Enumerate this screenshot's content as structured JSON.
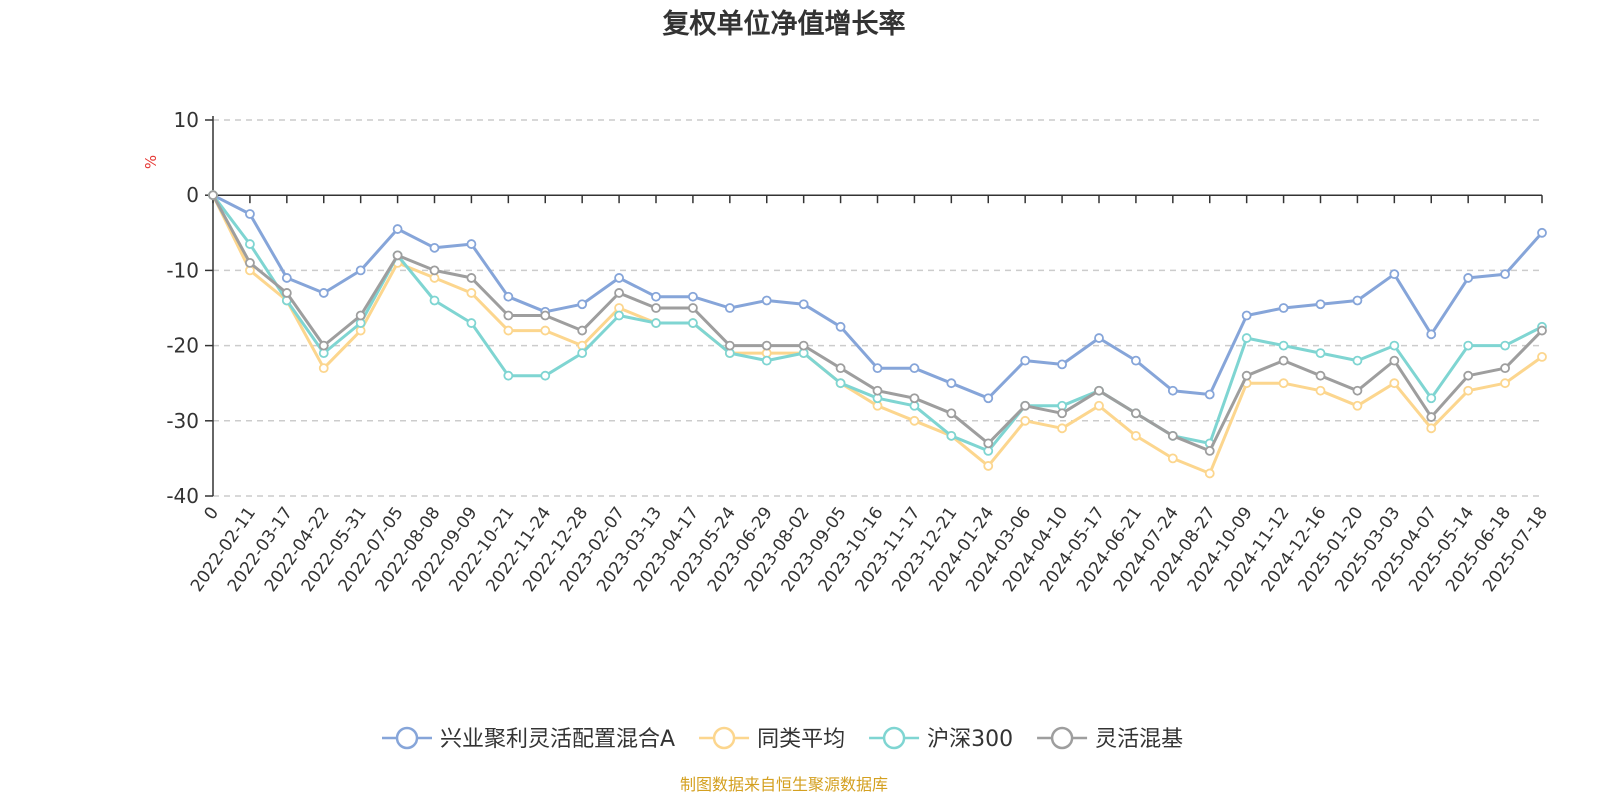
{
  "chart_data": {
    "type": "line",
    "title": "复权单位净值增长率",
    "ylabel": "%",
    "ylim": [
      -40,
      10
    ],
    "y_ticks": [
      "10",
      "0",
      "-10",
      "-20",
      "-30",
      "-40"
    ],
    "grid": true,
    "legend_position": "bottom",
    "source": "制图数据来自恒生聚源数据库",
    "x_labels": [
      "0",
      "2022-02-11",
      "2022-03-17",
      "2022-04-22",
      "2022-05-31",
      "2022-07-05",
      "2022-08-08",
      "2022-09-09",
      "2022-10-21",
      "2022-11-24",
      "2022-12-28",
      "2023-02-07",
      "2023-03-13",
      "2023-04-17",
      "2023-05-24",
      "2023-06-29",
      "2023-08-02",
      "2023-09-05",
      "2023-10-16",
      "2023-11-17",
      "2023-12-21",
      "2024-01-24",
      "2024-03-06",
      "2024-04-10",
      "2024-05-17",
      "2024-06-21",
      "2024-07-24",
      "2024-08-27",
      "2024-10-09",
      "2024-11-12",
      "2024-12-16",
      "2025-01-20",
      "2025-03-03",
      "2025-04-07",
      "2025-05-14",
      "2025-06-18",
      "2025-07-18"
    ],
    "series": [
      {
        "name": "兴业聚利灵活配置混合A",
        "color": "#86a5d9",
        "values": [
          0,
          -2.5,
          -11,
          -13,
          -10,
          -4.5,
          -7,
          -6.5,
          -13.5,
          -15.5,
          -14.5,
          -11,
          -13.5,
          -13.5,
          -15,
          -14,
          -14.5,
          -17.5,
          -23,
          -23,
          -25,
          -27,
          -22,
          -22.5,
          -19,
          -22,
          -26,
          -26.5,
          -16,
          -15,
          -14.5,
          -14,
          -10.5,
          -18.5,
          -11,
          -10.5,
          -5
        ]
      },
      {
        "name": "同类平均",
        "color": "#fcd68e",
        "values": [
          0,
          -10,
          -14,
          -23,
          -18,
          -9,
          -11,
          -13,
          -18,
          -18,
          -20,
          -15,
          -17,
          -17,
          -21,
          -21,
          -21,
          -25,
          -28,
          -30,
          -32,
          -36,
          -30,
          -31,
          -28,
          -32,
          -35,
          -37,
          -25,
          -25,
          -26,
          -28,
          -25,
          -31,
          -26,
          -25,
          -21.5
        ]
      },
      {
        "name": "沪深300",
        "color": "#7fd5d2",
        "values": [
          0,
          -6.5,
          -14,
          -21,
          -17,
          -8,
          -14,
          -17,
          -24,
          -24,
          -21,
          -16,
          -17,
          -17,
          -21,
          -22,
          -21,
          -25,
          -27,
          -28,
          -32,
          -34,
          -28,
          -28,
          -26,
          -29,
          -32,
          -33,
          -19,
          -20,
          -21,
          -22,
          -20,
          -27,
          -20,
          -20,
          -17.5
        ]
      },
      {
        "name": "灵活混基",
        "color": "#9e9e9e",
        "values": [
          0,
          -9,
          -13,
          -20,
          -16,
          -8,
          -10,
          -11,
          -16,
          -16,
          -18,
          -13,
          -15,
          -15,
          -20,
          -20,
          -20,
          -23,
          -26,
          -27,
          -29,
          -33,
          -28,
          -29,
          -26,
          -29,
          -32,
          -34,
          -24,
          -22,
          -24,
          -26,
          -22,
          -29.5,
          -24,
          -23,
          -18
        ]
      }
    ]
  }
}
